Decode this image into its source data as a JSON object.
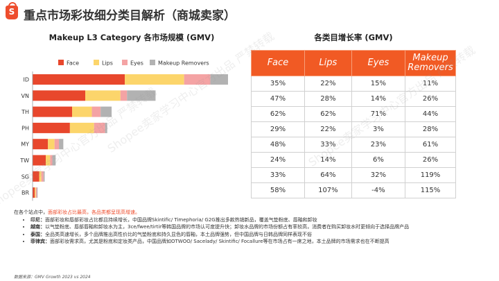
{
  "header": {
    "logo_letter": "S",
    "title": "重点市场彩妆细分类目解析（商城卖家）"
  },
  "chart_title": "Makeup L3 Category 各市场规模 (GMV)",
  "table_title": "各类目增长率 (GMV)",
  "colors": {
    "face": "#e8472c",
    "lips": "#fcd56b",
    "eyes": "#f4a3a4",
    "removers": "#b2b2b2",
    "accent": "#f15a24"
  },
  "chart_data": {
    "type": "bar",
    "orientation": "horizontal",
    "stacked": true,
    "categories": [
      "ID",
      "VN",
      "TH",
      "PH",
      "MY",
      "TW",
      "SG",
      "BR"
    ],
    "series": [
      {
        "name": "Face",
        "values": [
          42,
          24,
          18,
          17,
          7,
          6,
          3,
          1
        ]
      },
      {
        "name": "Lips",
        "values": [
          27,
          16,
          9,
          11,
          3,
          2,
          1,
          0.5
        ]
      },
      {
        "name": "Eyes",
        "values": [
          12,
          3,
          4,
          5,
          2,
          1,
          1,
          0.5
        ]
      },
      {
        "name": "Makeup Removers",
        "values": [
          8,
          13,
          5,
          1,
          2,
          1.5,
          0.5,
          0.3
        ]
      }
    ],
    "legend_position": "top",
    "grid": false
  },
  "growth_table": {
    "headers": [
      "Face",
      "Lips",
      "Eyes",
      "Makeup Removers"
    ],
    "rows": [
      [
        "35%",
        "22%",
        "15%",
        "11%"
      ],
      [
        "47%",
        "28%",
        "14%",
        "26%"
      ],
      [
        "62%",
        "62%",
        "71%",
        "44%"
      ],
      [
        "29%",
        "22%",
        "3%",
        "28%"
      ],
      [
        "48%",
        "33%",
        "23%",
        "61%"
      ],
      [
        "24%",
        "14%",
        "6%",
        "26%"
      ],
      [
        "33%",
        "64%",
        "32%",
        "119%"
      ],
      [
        "58%",
        "107%",
        "-4%",
        "115%"
      ]
    ]
  },
  "notes": {
    "lead_prefix": "在各个站点中，",
    "lead_highlight": "面部彩妆占比最高，各品类都呈现高增速。",
    "items": [
      {
        "label": "印尼：",
        "text": "面部彩妆和唇部彩妆占比都且持续增长，中国品牌Skintific/ Timephoria/ G2G推出多款热销新品，覆盖气垫粉底、唇釉和卸妆"
      },
      {
        "label": "越南：",
        "text": "以气垫粉底、唇部唇釉和卸妆水为主，3ce/fwee/tirtir等韩国品牌的市场认可度提升快；卸妆水品牌的市场份额占有率较高，消费者在购买卸妆水时更倾向于选择品牌产品"
      },
      {
        "label": "泰国：",
        "text": "全品类高速增长，多个品牌推出高性价比的气垫粉底和持久显色的唇釉，本土品牌强势，但中国品牌与日韩品牌同样表现不俗"
      },
      {
        "label": "菲律宾：",
        "text": "面部彩妆需求高，尤其是粉底和定妆类产品，中国品牌如OTWOO/ Sacelady/ Skintific/ Focallure等在市场占有一席之地，本土品牌的市场需求也在不断提高"
      }
    ]
  },
  "source": "数据来源：GMV Growth 2023 vs 2024",
  "watermark": "Shopee卖家学习中心官方出品 严禁转载"
}
